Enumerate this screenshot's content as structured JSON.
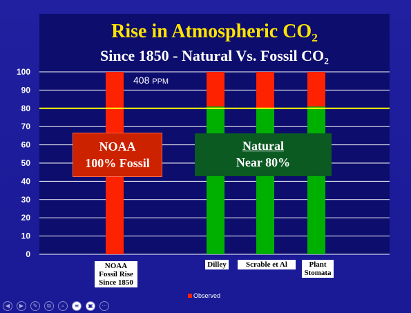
{
  "title_main": "Rise in Atmospheric CO",
  "title_main_sub": "2",
  "title_second": "Since 1850  - Natural Vs. Fossil CO",
  "title_second_sub": "2",
  "ppm_label": {
    "value": "408",
    "unit": "PPM"
  },
  "callouts": {
    "noaa": {
      "line1": "NOAA",
      "line2": "100% Fossil"
    },
    "natural": {
      "line1": "Natural",
      "line2": "Near 80%"
    }
  },
  "legend": {
    "label": "Observed"
  },
  "colors": {
    "fossil": "#ff2200",
    "natural": "#00b000",
    "reference_line": "#ffff00",
    "grid": "#ffffff"
  },
  "toolbar": {
    "icons": [
      "prev-icon",
      "next-icon",
      "pen-icon",
      "copy-icon",
      "search-icon",
      "menu-icon",
      "camera-icon",
      "more-icon"
    ]
  },
  "chart_data": {
    "type": "bar",
    "stacked": true,
    "categories": [
      [
        "NOAA",
        "Fossil Rise",
        "Since 1850"
      ],
      [
        "Dilley"
      ],
      [
        "Scrable et Al"
      ],
      [
        "Plant",
        "Stomata"
      ]
    ],
    "series": [
      {
        "values": [
          0,
          81,
          80,
          81
        ],
        "color": "#00b000"
      },
      {
        "name": "Observed",
        "values": [
          100,
          19,
          20,
          19
        ],
        "color": "#ff2200"
      }
    ],
    "reference_line": {
      "value": 80,
      "color": "#ffff00"
    },
    "yticks": [
      0,
      10,
      20,
      30,
      40,
      50,
      60,
      70,
      80,
      90,
      100
    ],
    "ylim": [
      0,
      100
    ],
    "grid": true
  }
}
